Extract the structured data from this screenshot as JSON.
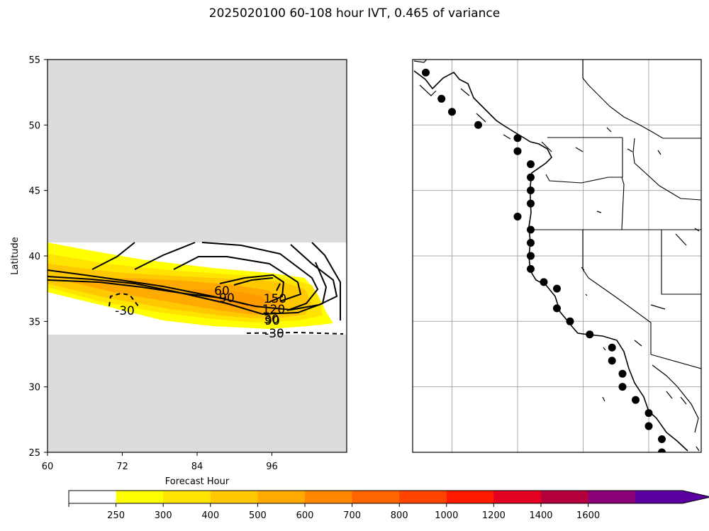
{
  "title": "2025020100 60-108 hour IVT, 0.465 of variance",
  "chart_data": {
    "type": "contour",
    "left_panel": {
      "xlabel": "Forecast Hour",
      "ylabel": "Latitude",
      "xlim": [
        60,
        108
      ],
      "ylim": [
        25,
        55
      ],
      "xticks": [
        "60",
        "72",
        "84",
        "96"
      ],
      "yticks": [
        "25",
        "30",
        "35",
        "40",
        "45",
        "50",
        "55"
      ],
      "data_band_lat": [
        34,
        41
      ],
      "masked_color": "#dcdcdc",
      "contour_labels": [
        "-30",
        "60",
        "90",
        "150",
        "120",
        "90",
        "30",
        "-30"
      ]
    },
    "right_panel": {
      "type": "map",
      "region": "US West Coast",
      "points": [
        [
          -132,
          54
        ],
        [
          -130.8,
          52
        ],
        [
          -130,
          51
        ],
        [
          -128,
          50
        ],
        [
          -125,
          49
        ],
        [
          -125,
          48
        ],
        [
          -124,
          47
        ],
        [
          -124,
          46
        ],
        [
          -124,
          45
        ],
        [
          -124,
          44
        ],
        [
          -125,
          43
        ],
        [
          -124,
          42
        ],
        [
          -124,
          41
        ],
        [
          -124,
          40
        ],
        [
          -124,
          39
        ],
        [
          -123,
          38
        ],
        [
          -122,
          37.5
        ],
        [
          -122,
          36
        ],
        [
          -121,
          35
        ],
        [
          -119.5,
          34
        ],
        [
          -117.8,
          33
        ],
        [
          -117.8,
          32
        ],
        [
          -117,
          31
        ],
        [
          -117,
          30
        ],
        [
          -116,
          29
        ],
        [
          -115,
          28
        ],
        [
          -115,
          27
        ],
        [
          -114,
          26
        ],
        [
          -114,
          25
        ]
      ]
    },
    "colorbar": {
      "ticks": [
        "250",
        "300",
        "400",
        "500",
        "600",
        "700",
        "800",
        "1000",
        "1200",
        "1400",
        "1600"
      ],
      "colors": [
        "#ffffff",
        "#ffff00",
        "#ffe400",
        "#ffc800",
        "#ffaa00",
        "#ff8800",
        "#ff6600",
        "#ff4400",
        "#ff1a00",
        "#e40020",
        "#b4003c",
        "#8a0078",
        "#5a00a0"
      ]
    }
  }
}
